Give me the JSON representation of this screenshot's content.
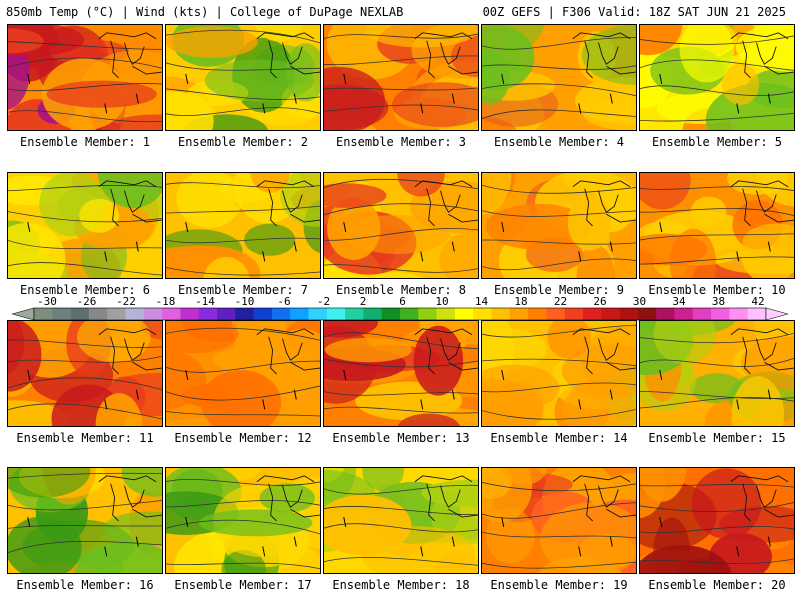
{
  "header": {
    "title": "850mb Temp (°C) | Wind (kts) | College of DuPage NEXLAB",
    "run_info": "00Z GEFS | F306 Valid: 18Z SAT JUN 21 2025"
  },
  "colorbar": {
    "labels": [
      "-30",
      "-26",
      "-22",
      "-18",
      "-14",
      "-10",
      "-6",
      "-2",
      "2",
      "6",
      "10",
      "14",
      "18",
      "22",
      "26",
      "30",
      "34",
      "38",
      "42"
    ],
    "colors": [
      "#7f8f7f",
      "#6f7f7f",
      "#5f6f6f",
      "#888888",
      "#a0a0a0",
      "#b4b4d6",
      "#c98ee0",
      "#e060e0",
      "#c030d0",
      "#8a2be2",
      "#6020c0",
      "#2020a0",
      "#1040d0",
      "#1070f0",
      "#10a0ff",
      "#30d0ff",
      "#40f0f0",
      "#20d0a0",
      "#10b070",
      "#109020",
      "#40b020",
      "#90d010",
      "#d0e010",
      "#ffff00",
      "#ffe000",
      "#ffc000",
      "#ffa000",
      "#ff8000",
      "#ff6020",
      "#f04020",
      "#e02020",
      "#c81818",
      "#b01010",
      "#901010",
      "#b01060",
      "#d02090",
      "#e040c0",
      "#f060e0",
      "#ff90f0",
      "#ffc0ff"
    ]
  },
  "members": [
    {
      "label": "Ensemble Member: 1",
      "palette": [
        "#ff8c00",
        "#ffa000",
        "#e83a1e",
        "#c8181e",
        "#a01090"
      ]
    },
    {
      "label": "Ensemble Member: 2",
      "palette": [
        "#ffcc00",
        "#ffe000",
        "#ffa000",
        "#6cbf1e",
        "#3a9a14"
      ]
    },
    {
      "label": "Ensemble Member: 3",
      "palette": [
        "#ff8000",
        "#ffa000",
        "#e83a1e",
        "#c8181e",
        "#ffc000"
      ]
    },
    {
      "label": "Ensemble Member: 4",
      "palette": [
        "#ffa000",
        "#ff8000",
        "#ffcc00",
        "#6cbf1e",
        "#e85a1e"
      ]
    },
    {
      "label": "Ensemble Member: 5",
      "palette": [
        "#ffe800",
        "#ffff00",
        "#ffc000",
        "#ff8000",
        "#6cbf1e"
      ]
    },
    {
      "label": "Ensemble Member: 6",
      "palette": [
        "#ffd000",
        "#ffe800",
        "#b0d010",
        "#6cbf1e",
        "#ffa000"
      ]
    },
    {
      "label": "Ensemble Member: 7",
      "palette": [
        "#ffc000",
        "#ffe000",
        "#b0d010",
        "#3a9a14",
        "#ff9000"
      ]
    },
    {
      "label": "Ensemble Member: 8",
      "palette": [
        "#ffc000",
        "#ffd800",
        "#ffa000",
        "#e83a1e",
        "#ffe800"
      ]
    },
    {
      "label": "Ensemble Member: 9",
      "palette": [
        "#ffa000",
        "#ff8000",
        "#ffc000",
        "#f05a1e",
        "#ffd000"
      ]
    },
    {
      "label": "Ensemble Member: 10",
      "palette": [
        "#ff9000",
        "#ff7000",
        "#e83a1e",
        "#ffc000",
        "#ffd000"
      ]
    },
    {
      "label": "Ensemble Member: 11",
      "palette": [
        "#ff8000",
        "#ffa000",
        "#e83a1e",
        "#c8181e",
        "#ffc000"
      ]
    },
    {
      "label": "Ensemble Member: 12",
      "palette": [
        "#ff9000",
        "#ffa000",
        "#e83a1e",
        "#ffc000",
        "#ff7000"
      ]
    },
    {
      "label": "Ensemble Member: 13",
      "palette": [
        "#ff8000",
        "#ffa000",
        "#e83a1e",
        "#c8181e",
        "#ffc000"
      ]
    },
    {
      "label": "Ensemble Member: 14",
      "palette": [
        "#ffc000",
        "#ffd800",
        "#ffa000",
        "#b0d010",
        "#ff9000"
      ]
    },
    {
      "label": "Ensemble Member: 15",
      "palette": [
        "#ffb000",
        "#ffc800",
        "#ff9000",
        "#b0d010",
        "#6cbf1e"
      ]
    },
    {
      "label": "Ensemble Member: 16",
      "palette": [
        "#ffc000",
        "#ffd800",
        "#ffa000",
        "#6cbf1e",
        "#3a9a14"
      ]
    },
    {
      "label": "Ensemble Member: 17",
      "palette": [
        "#ffc000",
        "#ffd800",
        "#ffe800",
        "#6cbf1e",
        "#3a9a14"
      ]
    },
    {
      "label": "Ensemble Member: 18",
      "palette": [
        "#ffd800",
        "#ffe800",
        "#ffc000",
        "#b0d010",
        "#6cbf1e"
      ]
    },
    {
      "label": "Ensemble Member: 19",
      "palette": [
        "#ff8000",
        "#ffa000",
        "#e83a1e",
        "#ffc000",
        "#ff6020"
      ]
    },
    {
      "label": "Ensemble Member: 20",
      "palette": [
        "#ff7000",
        "#ff9000",
        "#e83a1e",
        "#c8181e",
        "#a01010"
      ]
    }
  ]
}
